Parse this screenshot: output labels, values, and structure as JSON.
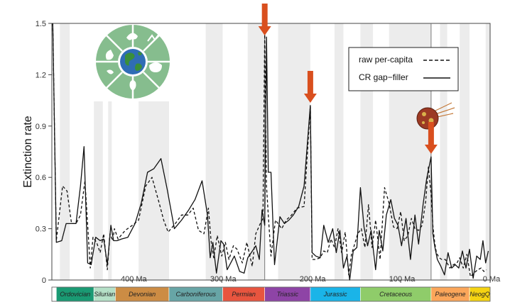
{
  "chart_data": {
    "type": "line",
    "ylabel": "Extinction rate",
    "xlabel": "",
    "xlim": [
      490,
      0
    ],
    "ylim": [
      0,
      1.5
    ],
    "x_ticks": [
      {
        "value": 400,
        "label": "400 Ma"
      },
      {
        "value": 300,
        "label": "300 Ma"
      },
      {
        "value": 200,
        "label": "200 Ma"
      },
      {
        "value": 100,
        "label": "100 Ma"
      },
      {
        "value": 0,
        "label": "0 Ma"
      }
    ],
    "y_ticks": [
      {
        "value": 0,
        "label": "0"
      },
      {
        "value": 0.3,
        "label": "0.3"
      },
      {
        "value": 0.6,
        "label": "0.6"
      },
      {
        "value": 0.9,
        "label": "0.9"
      },
      {
        "value": 1.2,
        "label": "1.2"
      },
      {
        "value": 1.5,
        "label": "1.5"
      }
    ],
    "grid": false,
    "legend": {
      "position": "top-right"
    },
    "shaded_intervals_ma": [
      [
        481,
        470
      ],
      [
        443,
        433
      ],
      [
        427,
        423
      ],
      [
        393,
        359
      ],
      [
        318,
        299
      ],
      [
        271,
        252
      ],
      [
        237,
        201
      ],
      [
        174,
        164
      ],
      [
        145,
        131
      ],
      [
        113,
        66
      ],
      [
        56,
        48
      ],
      [
        34,
        23
      ],
      [
        5,
        0
      ]
    ],
    "event_lines_ma": [
      252,
      66
    ],
    "arrows_ma": [
      252,
      201,
      66
    ],
    "series": [
      {
        "name": "raw per-capita",
        "style": "dashed",
        "x": [
          489,
          485,
          478,
          473,
          468,
          463,
          458,
          453,
          447,
          444,
          440,
          436,
          432,
          428,
          425,
          422,
          420,
          416,
          408,
          400,
          393,
          385,
          378,
          370,
          365,
          360,
          352,
          345,
          338,
          332,
          326,
          320,
          315,
          312,
          309,
          305,
          300,
          296,
          292,
          287,
          283,
          277,
          272,
          266,
          262,
          257,
          254,
          252,
          250,
          248,
          245,
          240,
          233,
          228,
          222,
          216,
          208,
          201,
          199,
          195,
          190,
          186,
          182,
          178,
          174,
          170,
          166,
          162,
          158,
          155,
          152,
          148,
          144,
          140,
          136,
          132,
          128,
          123,
          118,
          113,
          108,
          104,
          100,
          96,
          92,
          88,
          84,
          80,
          76,
          72,
          69,
          66,
          64,
          62,
          60,
          57,
          54,
          50,
          45,
          41,
          37,
          34,
          30,
          26,
          22,
          18,
          14,
          10,
          7,
          4
        ],
        "y": [
          1.5,
          0.23,
          0.55,
          0.52,
          0.33,
          0.33,
          0.38,
          0.58,
          0.07,
          0.25,
          0.22,
          0.16,
          0.27,
          0.06,
          0.27,
          0.23,
          0.3,
          0.24,
          0.29,
          0.32,
          0.35,
          0.55,
          0.6,
          0.45,
          0.35,
          0.28,
          0.33,
          0.38,
          0.38,
          0.42,
          0.29,
          0.27,
          0.42,
          0.23,
          0.13,
          0.26,
          0.14,
          0.22,
          0.12,
          0.2,
          0.18,
          0.1,
          0.22,
          0.08,
          0.27,
          0.33,
          0.36,
          1.45,
          0.55,
          0.38,
          0.14,
          0.35,
          0.3,
          0.35,
          0.38,
          0.42,
          0.43,
          1.02,
          0.12,
          0.12,
          0.13,
          0.17,
          0.16,
          0.24,
          0.19,
          0.3,
          0.16,
          0.28,
          0.03,
          0.15,
          0.2,
          0.27,
          0.3,
          0.19,
          0.44,
          0.19,
          0.35,
          0.12,
          0.54,
          0.45,
          0.31,
          0.3,
          0.4,
          0.23,
          0.26,
          0.36,
          0.3,
          0.29,
          0.32,
          0.46,
          0.66,
          0.5,
          0.32,
          0.22,
          0.16,
          0.13,
          0.12,
          0.12,
          0.07,
          0.09,
          0.1,
          0.13,
          0.07,
          0.15,
          0.02,
          0.04,
          0.06,
          0.07,
          0.05,
          0.06
        ]
      },
      {
        "name": "CR gap−filler",
        "style": "solid",
        "x": [
          489,
          485,
          479,
          474,
          468,
          463,
          458,
          454,
          450,
          446,
          441,
          436,
          432,
          428,
          424,
          421,
          417,
          412,
          405,
          397,
          390,
          383,
          376,
          368,
          361,
          353,
          345,
          337,
          330,
          322,
          316,
          313,
          310,
          306,
          301,
          298,
          294,
          290,
          286,
          280,
          275,
          271,
          267,
          262,
          258,
          255,
          252,
          250,
          248,
          245,
          241,
          235,
          230,
          225,
          220,
          214,
          208,
          201,
          199,
          195,
          190,
          186,
          181,
          176,
          172,
          168,
          164,
          160,
          157,
          153,
          149,
          145,
          141,
          137,
          133,
          128,
          124,
          120,
          116,
          111,
          107,
          103,
          99,
          94,
          89,
          84,
          80,
          75,
          71,
          66,
          64,
          62,
          59,
          55,
          51,
          47,
          43,
          39,
          35,
          31,
          27,
          23,
          19,
          15,
          11,
          8,
          5,
          2
        ],
        "y": [
          1.5,
          0.22,
          0.23,
          0.33,
          0.33,
          0.33,
          0.55,
          0.78,
          0.1,
          0.09,
          0.25,
          0.23,
          0.24,
          0.09,
          0.32,
          0.23,
          0.23,
          0.24,
          0.25,
          0.33,
          0.45,
          0.63,
          0.65,
          0.71,
          0.53,
          0.3,
          0.35,
          0.41,
          0.47,
          0.58,
          0.38,
          0.13,
          0.22,
          0.04,
          0.23,
          0.21,
          0.06,
          0.1,
          0.14,
          0.05,
          0.04,
          0.13,
          0.16,
          0.2,
          0.12,
          0.41,
          0.32,
          1.42,
          0.63,
          0.63,
          0.09,
          0.37,
          0.33,
          0.35,
          0.38,
          0.43,
          0.55,
          1.02,
          0.16,
          0.14,
          0.13,
          0.32,
          0.22,
          0.3,
          0.16,
          0.29,
          0.07,
          0.14,
          0.0,
          0.17,
          0.19,
          0.54,
          0.31,
          0.2,
          0.29,
          0.06,
          0.29,
          0.17,
          0.38,
          0.47,
          0.36,
          0.32,
          0.2,
          0.36,
          0.12,
          0.38,
          0.21,
          0.44,
          0.59,
          0.72,
          0.27,
          0.2,
          0.12,
          0.08,
          0.03,
          0.16,
          0.07,
          0.09,
          0.07,
          0.17,
          0.07,
          0.18,
          0.01,
          0.14,
          0.12,
          0.23,
          0.1,
          0.17
        ]
      }
    ]
  },
  "periods": [
    {
      "name": "Ordovician",
      "start": 485,
      "end": 443,
      "color": "#1a9a73"
    },
    {
      "name": "Silurian",
      "start": 443,
      "end": 419,
      "color": "#b5e0c7"
    },
    {
      "name": "Devonian",
      "start": 419,
      "end": 359,
      "color": "#cc8c44"
    },
    {
      "name": "Carboniferous",
      "start": 359,
      "end": 299,
      "color": "#67a5a6"
    },
    {
      "name": "Permian",
      "start": 299,
      "end": 252,
      "color": "#e8553f"
    },
    {
      "name": "Triassic",
      "start": 252,
      "end": 201,
      "color": "#8e44a6"
    },
    {
      "name": "Jurassic",
      "start": 201,
      "end": 145,
      "color": "#1ab4e8"
    },
    {
      "name": "Cretaceous",
      "start": 145,
      "end": 66,
      "color": "#8fcc6a"
    },
    {
      "name": "Paleogene",
      "start": 66,
      "end": 23,
      "color": "#fba65a"
    },
    {
      "name": "NeogQ",
      "start": 23,
      "end": 0,
      "color": "#f5d312"
    }
  ],
  "colors": {
    "arrow": "#d94f1e",
    "shade": "#ececec",
    "badge_green": "#86bd8e",
    "globe_blue": "#2f6db5",
    "globe_green": "#3a8f3a",
    "asteroid": "#9c3a24"
  },
  "icons": {
    "badge": "biodiversity-globe-icon",
    "asteroid": "asteroid-impact-icon"
  }
}
